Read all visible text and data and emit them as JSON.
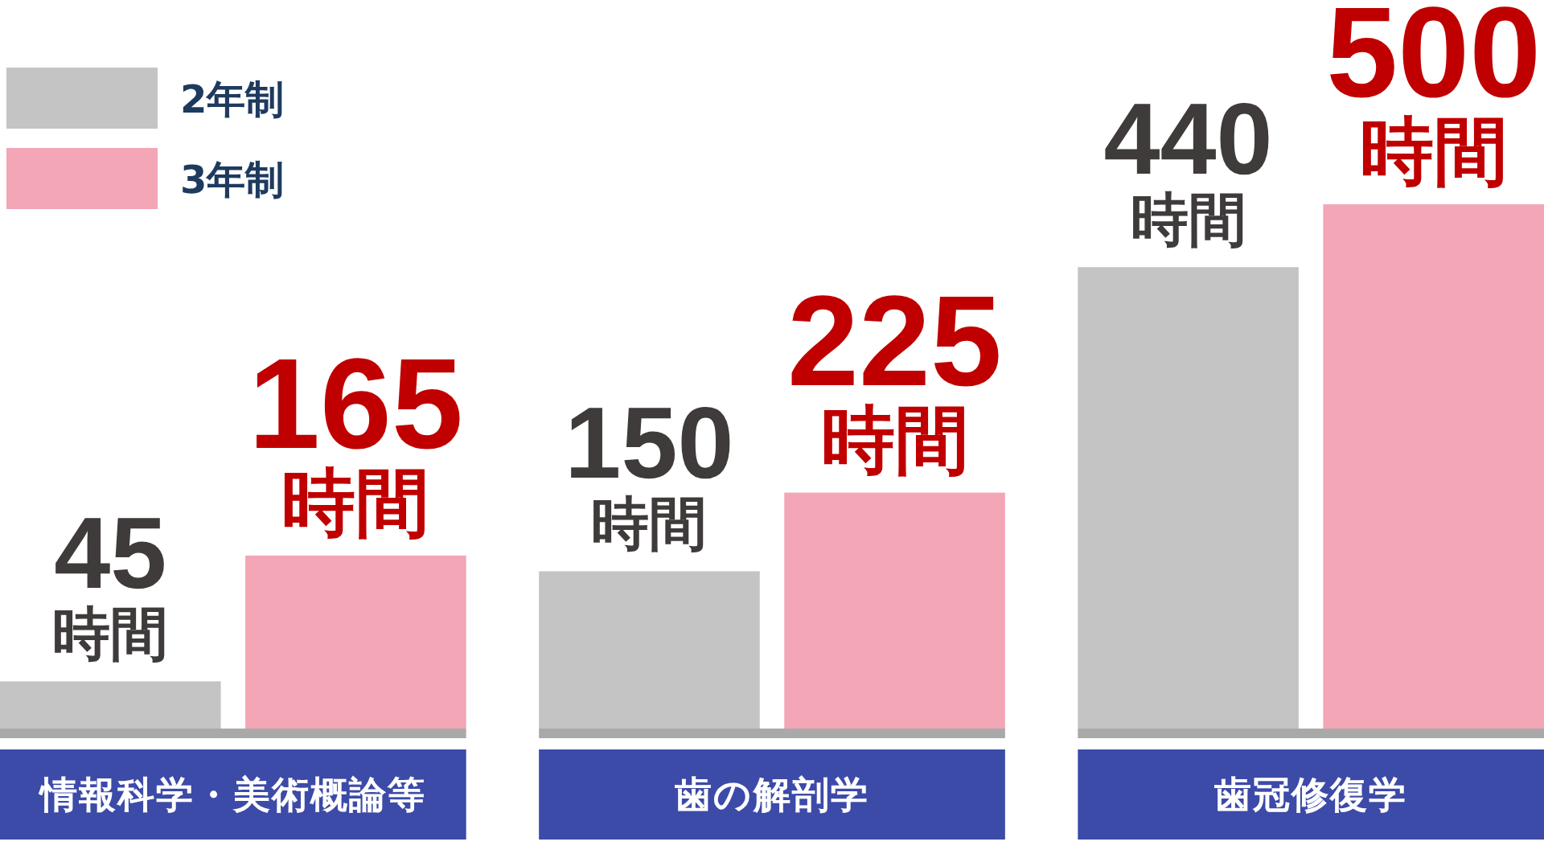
{
  "chart_data": {
    "type": "bar",
    "categories": [
      "情報科学・美術概論等",
      "歯の解剖学",
      "歯冠修復学"
    ],
    "series": [
      {
        "name": "2年制",
        "color": "#c4c4c4",
        "values": [
          45,
          150,
          440
        ],
        "value_labels": [
          "45\n時間",
          "150\n時間",
          "440\n時間"
        ]
      },
      {
        "name": "3年制",
        "color": "#f2a6b6",
        "values": [
          165,
          225,
          500
        ],
        "value_labels": [
          "165\n時間",
          "225\n時間",
          "500\n時間"
        ]
      }
    ],
    "legend": "top left"
  }
}
